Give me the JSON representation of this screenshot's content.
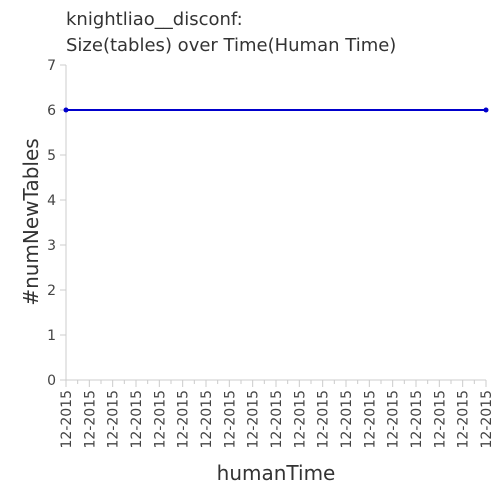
{
  "chart_data": {
    "type": "line",
    "title_line1": "knightliao__disconf:",
    "title_line2": "Size(tables) over Time(Human Time)",
    "xlabel": "humanTime",
    "ylabel": "#numNewTables",
    "x_tick_labels": [
      "12-2015",
      "12-2015",
      "12-2015",
      "12-2015",
      "12-2015",
      "12-2015",
      "12-2015",
      "12-2015",
      "12-2015",
      "12-2015",
      "12-2015",
      "12-2015",
      "12-2015",
      "12-2015",
      "12-2015",
      "12-2015",
      "12-2015",
      "12-2015",
      "12-2015",
      "12-2015",
      "12-2015",
      "12-2015",
      "12-2015",
      "12-2015",
      "12-2015",
      "12-2015",
      "12-2015",
      "12-2015",
      "12-2015",
      "12-2015",
      "12-2015",
      "12-2015",
      "12-2015",
      "12-2015",
      "12-2015",
      "12-2015",
      "12-2015"
    ],
    "y_ticks": [
      0,
      1,
      2,
      3,
      4,
      5,
      6,
      7
    ],
    "ylim": [
      0,
      7
    ],
    "grid": false,
    "series": [
      {
        "color": "#0000cc",
        "points": [
          {
            "x": "12-2015",
            "y": 6
          },
          {
            "x": "12-2015",
            "y": 6
          }
        ]
      }
    ]
  }
}
